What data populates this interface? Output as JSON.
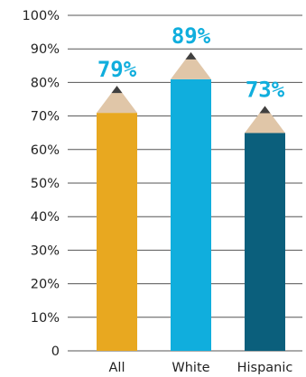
{
  "chart_data": {
    "type": "bar",
    "categories": [
      "All",
      "White",
      "Hispanic"
    ],
    "values": [
      79,
      89,
      73
    ],
    "value_labels": [
      "79%",
      "89%",
      "73%"
    ],
    "bar_colors": [
      "#E8A820",
      "#10AEDD",
      "#0B5F7C"
    ],
    "tip_color": "#E0C6A8",
    "lead_color": "#404040",
    "ylim": [
      0,
      100
    ],
    "yticks": [
      "0",
      "10%",
      "20%",
      "30%",
      "40%",
      "50%",
      "60%",
      "70%",
      "80%",
      "90%",
      "100%"
    ],
    "grid": true,
    "title": "",
    "xlabel": "",
    "ylabel": ""
  }
}
